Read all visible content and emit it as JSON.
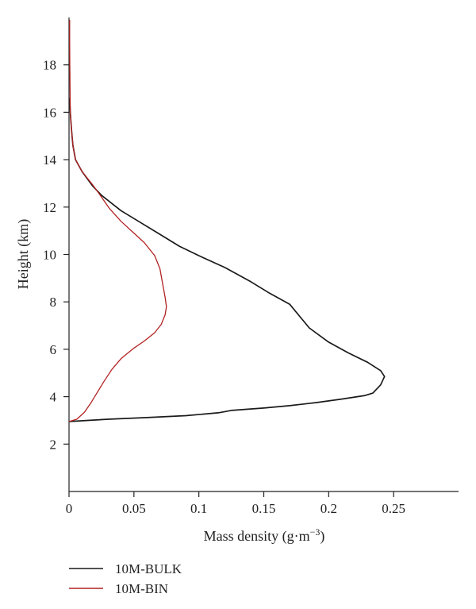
{
  "chart_data": {
    "type": "line",
    "title": "",
    "xlabel": "Mass density (g·m",
    "xlabel_exponent": "−3",
    "xlabel_close": ")",
    "ylabel": "Height (km)",
    "xlim": [
      0,
      0.3
    ],
    "ylim": [
      0,
      20
    ],
    "xticks": [
      0,
      0.05,
      0.1,
      0.15,
      0.2,
      0.25
    ],
    "xtick_labels": [
      "0",
      "0.05",
      "0.1",
      "0.15",
      "0.2",
      "0.25"
    ],
    "yticks": [
      2,
      4,
      6,
      8,
      10,
      12,
      14,
      16,
      18
    ],
    "ytick_labels": [
      "2",
      "4",
      "6",
      "8",
      "10",
      "12",
      "14",
      "16",
      "18"
    ],
    "grid": false,
    "legend_position": "below plot, left",
    "series": [
      {
        "name": "10M-BULK",
        "color": "#1a1a1a",
        "points": [
          [
            0.0,
            2.95
          ],
          [
            0.03,
            3.05
          ],
          [
            0.06,
            3.12
          ],
          [
            0.09,
            3.2
          ],
          [
            0.115,
            3.32
          ],
          [
            0.125,
            3.42
          ],
          [
            0.15,
            3.52
          ],
          [
            0.17,
            3.62
          ],
          [
            0.19,
            3.75
          ],
          [
            0.21,
            3.9
          ],
          [
            0.228,
            4.05
          ],
          [
            0.234,
            4.15
          ],
          [
            0.24,
            4.5
          ],
          [
            0.243,
            4.85
          ],
          [
            0.24,
            5.1
          ],
          [
            0.23,
            5.45
          ],
          [
            0.215,
            5.85
          ],
          [
            0.2,
            6.3
          ],
          [
            0.185,
            6.9
          ],
          [
            0.17,
            7.9
          ],
          [
            0.155,
            8.35
          ],
          [
            0.14,
            8.85
          ],
          [
            0.12,
            9.45
          ],
          [
            0.1,
            9.95
          ],
          [
            0.085,
            10.35
          ],
          [
            0.07,
            10.85
          ],
          [
            0.055,
            11.35
          ],
          [
            0.04,
            11.85
          ],
          [
            0.025,
            12.5
          ],
          [
            0.018,
            12.9
          ],
          [
            0.01,
            13.5
          ],
          [
            0.005,
            14.0
          ],
          [
            0.003,
            14.6
          ],
          [
            0.002,
            15.2
          ],
          [
            0.001,
            16.0
          ],
          [
            0.0005,
            16.6
          ]
        ]
      },
      {
        "name": "10M-BIN",
        "color": "#b22222",
        "points": [
          [
            0.0,
            2.95
          ],
          [
            0.006,
            3.05
          ],
          [
            0.012,
            3.35
          ],
          [
            0.017,
            3.75
          ],
          [
            0.022,
            4.2
          ],
          [
            0.027,
            4.65
          ],
          [
            0.033,
            5.15
          ],
          [
            0.04,
            5.6
          ],
          [
            0.05,
            6.05
          ],
          [
            0.058,
            6.35
          ],
          [
            0.066,
            6.7
          ],
          [
            0.071,
            7.05
          ],
          [
            0.074,
            7.45
          ],
          [
            0.075,
            7.8
          ],
          [
            0.074,
            8.2
          ],
          [
            0.072,
            8.8
          ],
          [
            0.07,
            9.4
          ],
          [
            0.066,
            9.95
          ],
          [
            0.058,
            10.5
          ],
          [
            0.05,
            10.9
          ],
          [
            0.04,
            11.4
          ],
          [
            0.031,
            11.95
          ],
          [
            0.024,
            12.5
          ],
          [
            0.018,
            12.95
          ],
          [
            0.01,
            13.5
          ],
          [
            0.005,
            14.0
          ],
          [
            0.003,
            14.6
          ],
          [
            0.002,
            15.2
          ],
          [
            0.001,
            16.0
          ],
          [
            0.0008,
            17.0
          ],
          [
            0.0006,
            18.0
          ],
          [
            0.0005,
            19.0
          ],
          [
            0.0005,
            19.9
          ]
        ]
      }
    ]
  }
}
